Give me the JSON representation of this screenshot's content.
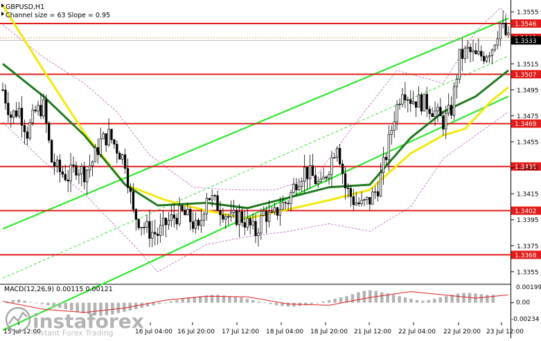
{
  "header": {
    "symbol": "GBPUSD,H1",
    "indicator": "Channel size = 63 Slope = 0.95"
  },
  "macd": {
    "label": "MACD(12,26,9) 0.00115 0.00121",
    "scale": [
      "0.00199",
      "0.00",
      "-0.00234"
    ]
  },
  "watermark": {
    "brand": "instaforex",
    "tagline": "Instant Forex Trading"
  },
  "colors": {
    "background": "#ffffff",
    "level_line": "#e31b1b",
    "channel": "#2ee82e",
    "ma_fast": "#f2e80c",
    "ma_slow": "#1f7a1f",
    "bollinger": "#c05ac0",
    "candle": "#000000",
    "macd_hist": "#b3b3b3",
    "macd_signal": "#e31b1b"
  },
  "chart_data": {
    "type": "candlestick",
    "symbol": "GBPUSD",
    "timeframe": "H1",
    "price_axis": {
      "min": 1.3348,
      "max": 1.3562,
      "ticks": [
        "1.3555",
        "1.3535",
        "1.3515",
        "1.3495",
        "1.3475",
        "1.3455",
        "1.3435",
        "1.3415",
        "1.3395",
        "1.3375",
        "1.3355"
      ]
    },
    "time_axis": {
      "labels": [
        "15 Jul 12:00",
        "16 Jul 04:00",
        "16 Jul 20:00",
        "17 Jul 12:00",
        "18 Jul 04:00",
        "18 Jul 20:00",
        "21 Jul 12:00",
        "22 Jul 04:00",
        "22 Jul 20:00",
        "23 Jul 12:00"
      ]
    },
    "levels": [
      {
        "label": "1.3546",
        "value": 1.3546
      },
      {
        "label": "1.3507",
        "value": 1.3507
      },
      {
        "label": "1.3469",
        "value": 1.3469
      },
      {
        "label": "1.3436",
        "value": 1.3436
      },
      {
        "label": "1.3402",
        "value": 1.3402
      },
      {
        "label": "1.3368",
        "value": 1.3368
      }
    ],
    "current_price": {
      "label": "1.3533",
      "value": 1.3533
    },
    "partial_level_label": "1.3535",
    "close_path": [
      [
        0,
        1.3495
      ],
      [
        6,
        1.3475
      ],
      [
        12,
        1.348
      ],
      [
        18,
        1.3462
      ],
      [
        24,
        1.3478
      ],
      [
        30,
        1.3482
      ],
      [
        36,
        1.344
      ],
      [
        42,
        1.3432
      ],
      [
        48,
        1.3428
      ],
      [
        54,
        1.3436
      ],
      [
        60,
        1.3431
      ],
      [
        66,
        1.344
      ],
      [
        72,
        1.3455
      ],
      [
        78,
        1.346
      ],
      [
        84,
        1.345
      ],
      [
        90,
        1.344
      ],
      [
        96,
        1.34
      ],
      [
        102,
        1.3392
      ],
      [
        108,
        1.3386
      ],
      [
        114,
        1.3384
      ],
      [
        120,
        1.3392
      ],
      [
        126,
        1.3397
      ],
      [
        132,
        1.34
      ],
      [
        138,
        1.3395
      ],
      [
        144,
        1.3386
      ],
      [
        150,
        1.3415
      ],
      [
        156,
        1.3408
      ],
      [
        162,
        1.3402
      ],
      [
        168,
        1.3395
      ],
      [
        174,
        1.3398
      ],
      [
        180,
        1.3392
      ],
      [
        186,
        1.3385
      ],
      [
        192,
        1.34
      ],
      [
        198,
        1.3396
      ],
      [
        204,
        1.3405
      ],
      [
        210,
        1.341
      ],
      [
        216,
        1.3425
      ],
      [
        222,
        1.3433
      ],
      [
        228,
        1.3428
      ],
      [
        234,
        1.342
      ],
      [
        240,
        1.3436
      ],
      [
        246,
        1.3455
      ],
      [
        252,
        1.342
      ],
      [
        258,
        1.341
      ],
      [
        264,
        1.3406
      ],
      [
        270,
        1.341
      ],
      [
        276,
        1.342
      ],
      [
        282,
        1.3445
      ],
      [
        288,
        1.3475
      ],
      [
        294,
        1.3497
      ],
      [
        300,
        1.3488
      ],
      [
        306,
        1.3486
      ],
      [
        312,
        1.3484
      ],
      [
        318,
        1.3478
      ],
      [
        324,
        1.347
      ],
      [
        330,
        1.348
      ],
      [
        336,
        1.352
      ],
      [
        342,
        1.3525
      ],
      [
        348,
        1.352
      ],
      [
        354,
        1.3522
      ],
      [
        360,
        1.3528
      ],
      [
        366,
        1.3546
      ],
      [
        372,
        1.3533
      ]
    ],
    "ma_fast": [
      [
        0,
        1.356
      ],
      [
        30,
        1.351
      ],
      [
        60,
        1.3462
      ],
      [
        90,
        1.3422
      ],
      [
        120,
        1.341
      ],
      [
        150,
        1.3402
      ],
      [
        180,
        1.3396
      ],
      [
        210,
        1.3403
      ],
      [
        240,
        1.341
      ],
      [
        270,
        1.3418
      ],
      [
        300,
        1.3446
      ],
      [
        324,
        1.346
      ],
      [
        340,
        1.3465
      ],
      [
        360,
        1.3487
      ],
      [
        372,
        1.3497
      ]
    ],
    "ma_slow": [
      [
        0,
        1.3515
      ],
      [
        30,
        1.349
      ],
      [
        60,
        1.346
      ],
      [
        90,
        1.3422
      ],
      [
        114,
        1.3406
      ],
      [
        150,
        1.3408
      ],
      [
        180,
        1.3404
      ],
      [
        210,
        1.3412
      ],
      [
        240,
        1.342
      ],
      [
        270,
        1.3422
      ],
      [
        300,
        1.3458
      ],
      [
        324,
        1.3478
      ],
      [
        348,
        1.349
      ],
      [
        372,
        1.351
      ]
    ],
    "bb_upper": [
      [
        0,
        1.3545
      ],
      [
        30,
        1.352
      ],
      [
        60,
        1.35
      ],
      [
        84,
        1.3478
      ],
      [
        108,
        1.3445
      ],
      [
        140,
        1.342
      ],
      [
        170,
        1.3418
      ],
      [
        200,
        1.3418
      ],
      [
        230,
        1.3428
      ],
      [
        260,
        1.347
      ],
      [
        290,
        1.351
      ],
      [
        324,
        1.35
      ],
      [
        348,
        1.354
      ],
      [
        366,
        1.3558
      ],
      [
        372,
        1.3552
      ]
    ],
    "bb_lower": [
      [
        0,
        1.347
      ],
      [
        30,
        1.344
      ],
      [
        60,
        1.3415
      ],
      [
        96,
        1.3376
      ],
      [
        114,
        1.3355
      ],
      [
        150,
        1.3376
      ],
      [
        180,
        1.3382
      ],
      [
        210,
        1.3386
      ],
      [
        240,
        1.3392
      ],
      [
        270,
        1.3386
      ],
      [
        300,
        1.3405
      ],
      [
        324,
        1.3442
      ],
      [
        348,
        1.346
      ],
      [
        372,
        1.3478
      ]
    ],
    "channel": {
      "upper": [
        [
          0,
          1.3388
        ],
        [
          372,
          1.355
        ]
      ],
      "middle": [
        [
          0,
          1.335
        ],
        [
          372,
          1.3521
        ]
      ],
      "lower": [
        [
          0,
          1.331
        ],
        [
          372,
          1.349
        ]
      ]
    },
    "macd_hist": [
      2e-05,
      4e-05,
      5e-05,
      3e-05,
      1e-05,
      0.0,
      -2e-05,
      -4e-05,
      -6e-05,
      -8e-05,
      -0.0001,
      -0.00012,
      -0.00014,
      -0.00016,
      -0.00018,
      -0.00019,
      -0.0002,
      -0.00019,
      -0.00018,
      -0.00016,
      -0.00014,
      -0.00012,
      -0.0001,
      -8e-05,
      -6e-05,
      -4e-05,
      -2e-05,
      0.0,
      2e-05,
      4e-05,
      6e-05,
      8e-05,
      9e-05,
      0.0001,
      0.00011,
      0.00012,
      0.00012,
      0.00011,
      0.0001,
      9e-05,
      8e-05,
      6e-05,
      4e-05,
      2e-05,
      0.0,
      -2e-05,
      -4e-05,
      -5e-05,
      -6e-05,
      -6e-05,
      -5e-05,
      -4e-05,
      -2e-05,
      0.0,
      2e-05,
      4e-05,
      6e-05,
      8e-05,
      0.0001,
      0.00013,
      0.00016,
      0.00018,
      0.00019,
      0.00018,
      0.00016,
      0.00014,
      0.00012,
      0.0001,
      8e-05,
      6e-05,
      4e-05,
      3e-05,
      4e-05,
      6e-05,
      8e-05,
      0.0001,
      0.00012,
      0.00014,
      0.00015,
      0.00015,
      0.00014,
      0.00013,
      0.00012,
      0.00012
    ],
    "macd_signal": [
      [
        0,
        2e-05
      ],
      [
        30,
        -0.0001
      ],
      [
        60,
        -0.00015
      ],
      [
        90,
        -8e-05
      ],
      [
        120,
        4e-05
      ],
      [
        150,
        0.0001
      ],
      [
        180,
        9e-05
      ],
      [
        210,
        -2e-05
      ],
      [
        240,
        -4e-05
      ],
      [
        270,
        8e-05
      ],
      [
        300,
        0.00017
      ],
      [
        324,
        0.00012
      ],
      [
        348,
        7e-05
      ],
      [
        372,
        0.00012
      ]
    ],
    "macd_axis": {
      "min": -0.0003,
      "max": 0.00025
    }
  }
}
